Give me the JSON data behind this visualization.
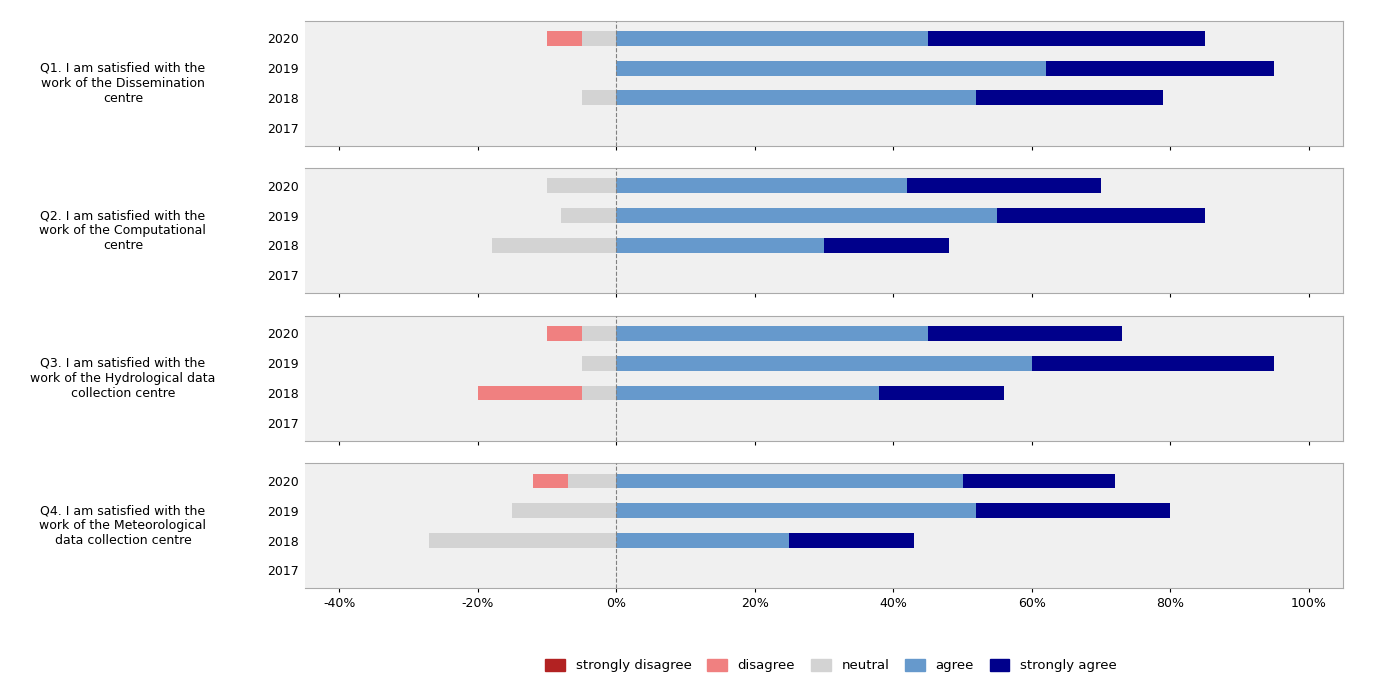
{
  "questions": [
    "Q1. I am satisfied with the\nwork of the Dissemination\ncentre",
    "Q2. I am satisfied with the\nwork of the Computational\ncentre",
    "Q3. I am satisfied with the\nwork of the Hydrological data\ncollection centre",
    "Q4. I am satisfied with the\nwork of the Meteorological\ndata collection centre"
  ],
  "years": [
    "2020",
    "2019",
    "2018",
    "2017"
  ],
  "data": [
    {
      "q": 0,
      "rows": [
        {
          "year": "2020",
          "strongly_disagree": 0,
          "disagree": -5,
          "neutral": -5,
          "agree": 45,
          "strongly_agree": 40
        },
        {
          "year": "2019",
          "strongly_disagree": 0,
          "disagree": 0,
          "neutral": 0,
          "agree": 62,
          "strongly_agree": 33
        },
        {
          "year": "2018",
          "strongly_disagree": 0,
          "disagree": 0,
          "neutral": -5,
          "agree": 52,
          "strongly_agree": 27
        },
        {
          "year": "2017",
          "strongly_disagree": 0,
          "disagree": 0,
          "neutral": 0,
          "agree": 0,
          "strongly_agree": 0
        }
      ]
    },
    {
      "q": 1,
      "rows": [
        {
          "year": "2020",
          "strongly_disagree": 0,
          "disagree": 0,
          "neutral": -10,
          "agree": 42,
          "strongly_agree": 28
        },
        {
          "year": "2019",
          "strongly_disagree": 0,
          "disagree": 0,
          "neutral": -8,
          "agree": 55,
          "strongly_agree": 30
        },
        {
          "year": "2018",
          "strongly_disagree": 0,
          "disagree": 0,
          "neutral": -18,
          "agree": 30,
          "strongly_agree": 18
        },
        {
          "year": "2017",
          "strongly_disagree": 0,
          "disagree": 0,
          "neutral": 0,
          "agree": 0,
          "strongly_agree": 0
        }
      ]
    },
    {
      "q": 2,
      "rows": [
        {
          "year": "2020",
          "strongly_disagree": 0,
          "disagree": -5,
          "neutral": -5,
          "agree": 45,
          "strongly_agree": 28
        },
        {
          "year": "2019",
          "strongly_disagree": 0,
          "disagree": 0,
          "neutral": -5,
          "agree": 60,
          "strongly_agree": 35
        },
        {
          "year": "2018",
          "strongly_disagree": 0,
          "disagree": -15,
          "neutral": -5,
          "agree": 38,
          "strongly_agree": 18
        },
        {
          "year": "2017",
          "strongly_disagree": 0,
          "disagree": 0,
          "neutral": 0,
          "agree": 0,
          "strongly_agree": 0
        }
      ]
    },
    {
      "q": 3,
      "rows": [
        {
          "year": "2020",
          "strongly_disagree": 0,
          "disagree": -5,
          "neutral": -7,
          "agree": 50,
          "strongly_agree": 22
        },
        {
          "year": "2019",
          "strongly_disagree": 0,
          "disagree": 0,
          "neutral": -15,
          "agree": 52,
          "strongly_agree": 28
        },
        {
          "year": "2018",
          "strongly_disagree": 0,
          "disagree": 0,
          "neutral": -27,
          "agree": 25,
          "strongly_agree": 18
        },
        {
          "year": "2017",
          "strongly_disagree": 0,
          "disagree": 0,
          "neutral": 0,
          "agree": 0,
          "strongly_agree": 0
        }
      ]
    }
  ],
  "colors": {
    "strongly_disagree": "#b22222",
    "disagree": "#f08080",
    "neutral": "#d3d3d3",
    "agree": "#6699cc",
    "strongly_agree": "#00008b"
  },
  "xlim": [
    -45,
    105
  ],
  "xticks": [
    -40,
    -20,
    0,
    20,
    40,
    60,
    80,
    100
  ],
  "xticklabels": [
    "-40%",
    "-20%",
    "0%",
    "20%",
    "40%",
    "60%",
    "80%",
    "100%"
  ],
  "background_color": "#f0f0f0",
  "legend_labels": [
    "strongly disagree",
    "disagree",
    "neutral",
    "agree",
    "strongly agree"
  ],
  "legend_colors": [
    "#b22222",
    "#f08080",
    "#d3d3d3",
    "#6699cc",
    "#00008b"
  ]
}
